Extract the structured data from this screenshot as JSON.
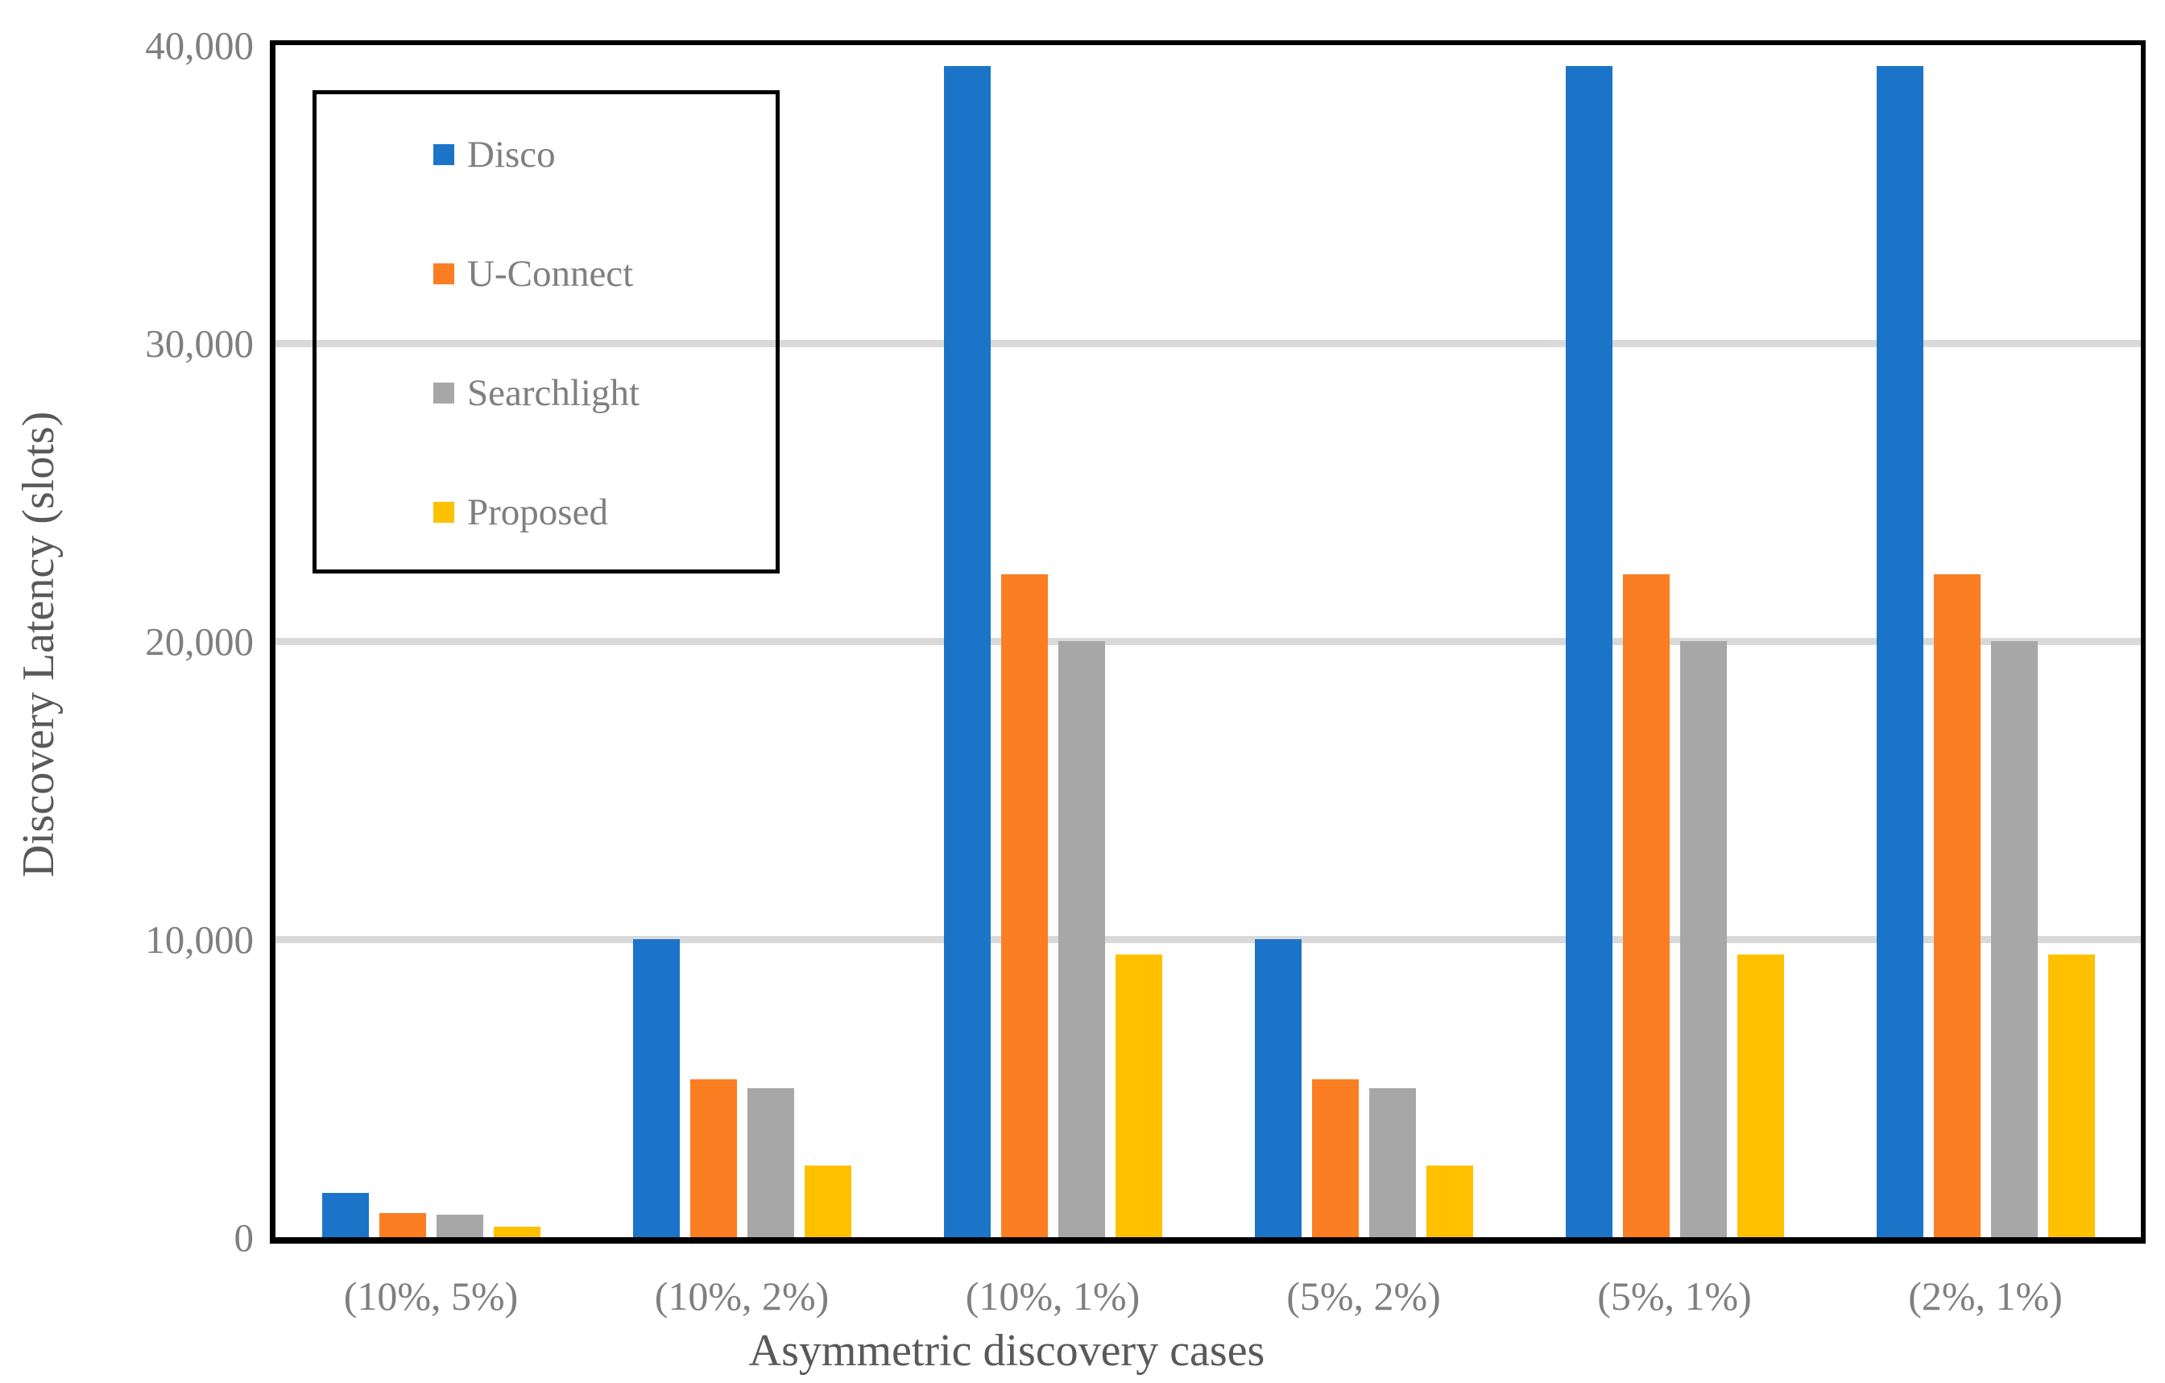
{
  "figure": {
    "y_axis_title": "Discovery Latency (slots)",
    "x_axis_title": "Asymmetric discovery cases"
  },
  "legend": {
    "items": [
      {
        "label": "Disco",
        "color": "#1B74C8"
      },
      {
        "label": "U-Connect",
        "color": "#FC7E23"
      },
      {
        "label": "Searchlight",
        "color": "#A7A7A7"
      },
      {
        "label": "Proposed",
        "color": "#FFC000"
      }
    ]
  },
  "colors": {
    "gridline": "#D9D9D9",
    "axis_line": "#000000",
    "tick_text": "#7F7F7F",
    "title_text": "#595959",
    "background": "#FFFFFF"
  },
  "chart_data": {
    "type": "bar",
    "title": "",
    "xlabel": "Asymmetric discovery cases",
    "ylabel": "Discovery Latency (slots)",
    "ylim": [
      0,
      40000
    ],
    "grid": true,
    "legend_position": "top-left-inside",
    "categories": [
      "(10%, 5%)",
      "(10%, 2%)",
      "(10%, 1%)",
      "(5%, 2%)",
      "(5%, 1%)",
      "(2%, 1%)"
    ],
    "yticks": [
      {
        "value": 0,
        "label": "0"
      },
      {
        "value": 10000,
        "label": "10,000"
      },
      {
        "value": 20000,
        "label": "20,000"
      },
      {
        "value": 30000,
        "label": "30,000"
      },
      {
        "value": 40000,
        "label": "40,000"
      }
    ],
    "series": [
      {
        "name": "Disco",
        "color": "#1B74C8",
        "values": [
          1500,
          10000,
          39300,
          10000,
          39300,
          39300
        ]
      },
      {
        "name": "U-Connect",
        "color": "#FC7E23",
        "values": [
          800,
          5300,
          22250,
          5300,
          22250,
          22250
        ]
      },
      {
        "name": "Searchlight",
        "color": "#A7A7A7",
        "values": [
          750,
          5000,
          20000,
          5000,
          20000,
          20000
        ]
      },
      {
        "name": "Proposed",
        "color": "#FFC000",
        "values": [
          350,
          2400,
          9500,
          2400,
          9500,
          9500
        ]
      }
    ]
  }
}
